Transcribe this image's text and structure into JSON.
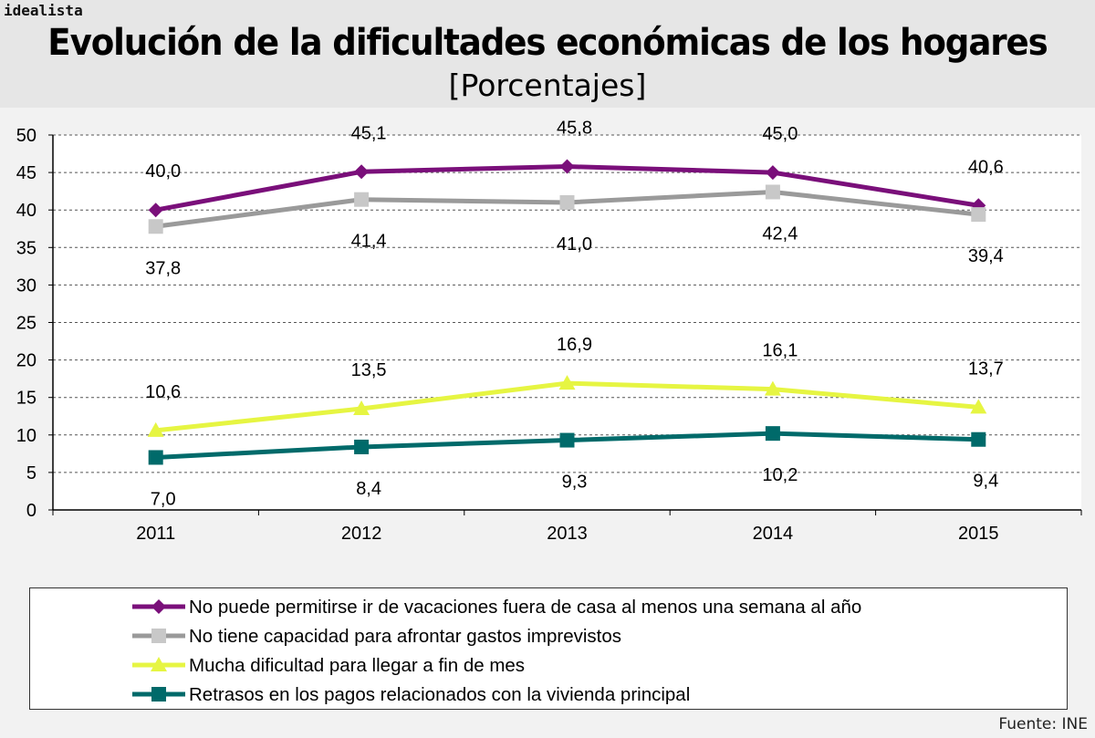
{
  "brand": "idealista",
  "title": "Evolución de la dificultades económicas de los hogares",
  "subtitle": "[Porcentajes]",
  "source": "Fuente: INE",
  "chart_data": {
    "type": "line",
    "title": "Evolución de la dificultades económicas de los hogares",
    "subtitle": "[Porcentajes]",
    "xlabel": "",
    "ylabel": "",
    "categories": [
      "2011",
      "2012",
      "2013",
      "2014",
      "2015"
    ],
    "ylim": [
      0,
      50
    ],
    "yticks": [
      0,
      5,
      10,
      15,
      20,
      25,
      30,
      35,
      40,
      45,
      50
    ],
    "grid": "horizontal dashed",
    "legend_position": "bottom",
    "series": [
      {
        "name": "No puede permitirse ir de vacaciones fuera de casa al menos una semana al año",
        "values": [
          40.0,
          45.1,
          45.8,
          45.0,
          40.6
        ],
        "labels": [
          "40,0",
          "45,1",
          "45,8",
          "45,0",
          "40,6"
        ],
        "label_side": "above",
        "color": "#7a0f7a",
        "marker": "diamond"
      },
      {
        "name": "No tiene capacidad para afrontar gastos imprevistos",
        "values": [
          37.8,
          41.4,
          41.0,
          42.4,
          39.4
        ],
        "labels": [
          "37,8",
          "41,4",
          "41,0",
          "42,4",
          "39,4"
        ],
        "label_side": "below",
        "color": "#9a9a9a",
        "marker_color": "#c8c8c8",
        "marker": "square"
      },
      {
        "name": "Mucha dificultad para llegar a fin de mes",
        "values": [
          10.6,
          13.5,
          16.9,
          16.1,
          13.7
        ],
        "labels": [
          "10,6",
          "13,5",
          "16,9",
          "16,1",
          "13,7"
        ],
        "label_side": "above",
        "color": "#e6f542",
        "marker": "triangle"
      },
      {
        "name": "Retrasos en los pagos relacionados con la vivienda principal",
        "values": [
          7.0,
          8.4,
          9.3,
          10.2,
          9.4
        ],
        "labels": [
          "7,0",
          "8,4",
          "9,3",
          "10,2",
          "9,4"
        ],
        "label_side": "below",
        "color": "#006a6a",
        "marker": "square"
      }
    ]
  }
}
